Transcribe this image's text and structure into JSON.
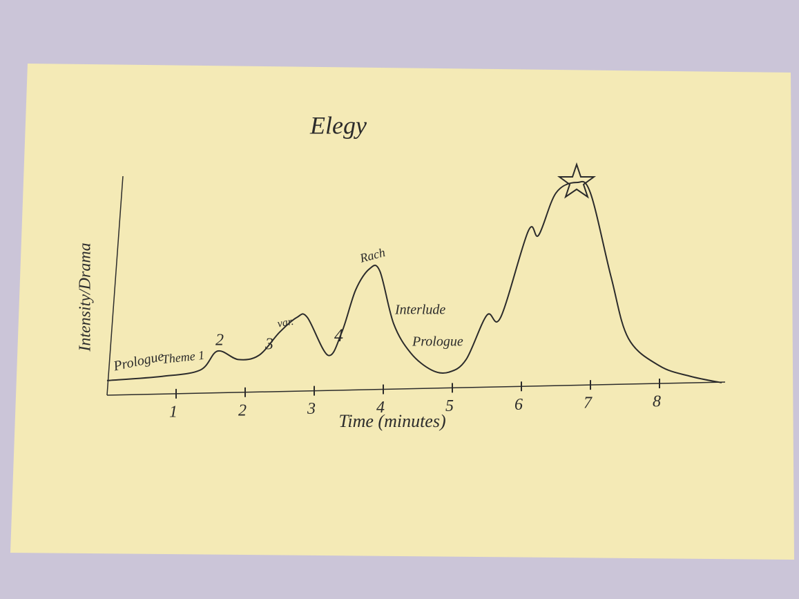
{
  "chart_data": {
    "type": "line",
    "title": "Elegy",
    "x_label": "Time (minutes)",
    "y_label": "Intensity/Drama",
    "x": [
      0,
      0.8,
      1.35,
      1.6,
      1.9,
      2.2,
      2.5,
      2.75,
      2.9,
      3.2,
      3.4,
      3.6,
      3.8,
      3.95,
      4.15,
      4.4,
      4.7,
      4.95,
      5.2,
      5.5,
      5.7,
      6.1,
      6.25,
      6.5,
      6.8,
      7.0,
      7.3,
      7.55,
      8.0,
      8.45,
      8.9
    ],
    "y": [
      3,
      5,
      8,
      17,
      13,
      15,
      26,
      33,
      33,
      15,
      26,
      46,
      56,
      55,
      30,
      16,
      8,
      7,
      13,
      34,
      33,
      74,
      72,
      92,
      97,
      92,
      52,
      23,
      10,
      5,
      2
    ],
    "color": "#2b2b2b",
    "xlim": [
      0,
      9
    ],
    "xticks": [
      1,
      2,
      3,
      4,
      5,
      6,
      7,
      8
    ],
    "ylim": [
      0,
      100
    ],
    "annotations": [
      "Prologue",
      "Theme 1",
      "2",
      "3",
      "var.",
      "4",
      "Rach",
      "Interlude",
      "Prologue"
    ]
  }
}
